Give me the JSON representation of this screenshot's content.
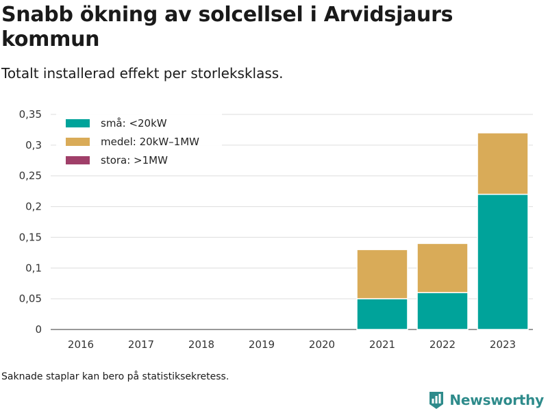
{
  "title": "Snabb ökning av solcellsel i Arvidsjaurs kommun",
  "subtitle": "Totalt installerad effekt per storleksklass.",
  "footnote": "Saknade staplar kan bero på statistiksekretess.",
  "brand": {
    "name": "Newsworthy",
    "logo_icon": "bar-chart-shield-icon",
    "color": "#2e8b8b"
  },
  "chart_data": {
    "type": "bar",
    "stacked": true,
    "categories": [
      "2016",
      "2017",
      "2018",
      "2019",
      "2020",
      "2021",
      "2022",
      "2023"
    ],
    "series": [
      {
        "name": "små: <20kW",
        "color": "#00a39a",
        "values": [
          0,
          0,
          0,
          0,
          0,
          0.05,
          0.06,
          0.22
        ]
      },
      {
        "name": "medel: 20kW–1MW",
        "color": "#d9ab58",
        "values": [
          0,
          0,
          0,
          0,
          0,
          0.08,
          0.08,
          0.1
        ]
      },
      {
        "name": "stora: >1MW",
        "color": "#a03f69",
        "values": [
          0,
          0,
          0,
          0,
          0,
          0,
          0,
          0
        ]
      }
    ],
    "ylim": [
      0,
      0.35
    ],
    "yticks": [
      0,
      0.05,
      0.1,
      0.15,
      0.2,
      0.25,
      0.3,
      0.35
    ],
    "ytick_labels": [
      "0",
      "0,05",
      "0,1",
      "0,15",
      "0,2",
      "0,25",
      "0,3",
      "0,35"
    ],
    "xlabel": "",
    "ylabel": "",
    "grid": true,
    "legend_position": "top-left"
  }
}
